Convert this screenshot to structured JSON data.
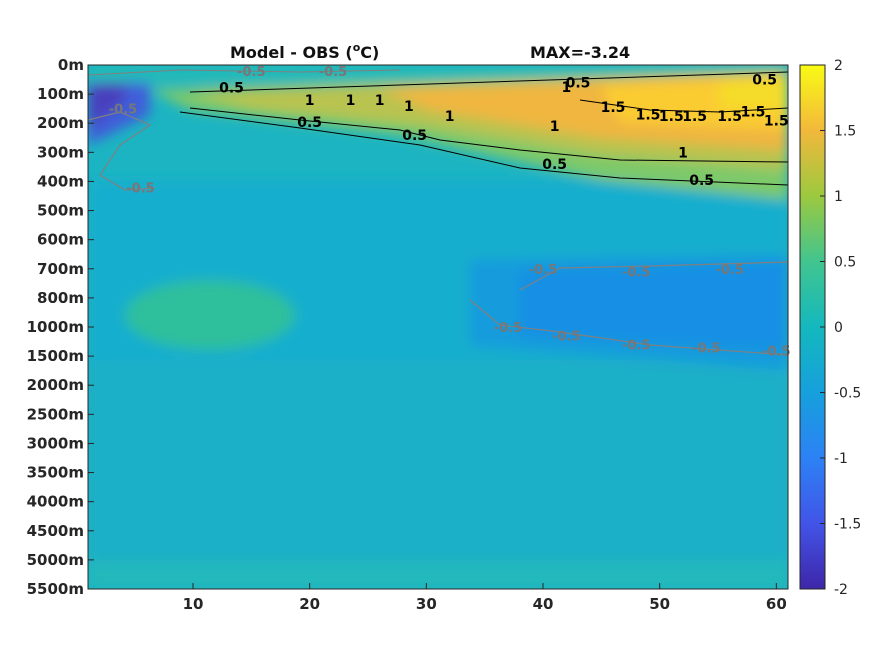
{
  "chart_data": {
    "type": "heatmap",
    "title_left": "Model - OBS (",
    "title_unit_sup": "o",
    "title_unit_tail": "C)",
    "title_max": "MAX=-3.24",
    "x_ticks": [
      10,
      20,
      30,
      40,
      50,
      60
    ],
    "x_range": [
      1,
      61
    ],
    "y_tick_labels": [
      "0m",
      "100m",
      "200m",
      "300m",
      "400m",
      "500m",
      "600m",
      "700m",
      "800m",
      "1000m",
      "1500m",
      "2000m",
      "2500m",
      "3000m",
      "3500m",
      "4000m",
      "4500m",
      "5000m",
      "5500m"
    ],
    "colorbar": {
      "range": [
        -2,
        2
      ],
      "ticks": [
        2,
        1.5,
        1,
        0.5,
        0,
        -0.5,
        -1,
        -1.5,
        -2
      ],
      "tick_labels": [
        "2",
        "1.5",
        "1",
        "0.5",
        "0",
        "-0.5",
        "-1",
        "-1.5",
        "-2"
      ]
    },
    "colormap": "parula",
    "contours": [
      {
        "level": "0.5",
        "color": "#000000",
        "labels": [
          {
            "x": 13.3,
            "y": 0.78
          },
          {
            "x": 20,
            "y": 1.95
          },
          {
            "x": 29,
            "y": 2.4
          },
          {
            "x": 43,
            "y": 0.6
          },
          {
            "x": 41,
            "y": 3.4
          },
          {
            "x": 53.6,
            "y": 3.95
          },
          {
            "x": 59,
            "y": 0.5
          }
        ]
      },
      {
        "level": "1",
        "color": "#000000",
        "labels": [
          {
            "x": 20,
            "y": 1.2
          },
          {
            "x": 23.5,
            "y": 1.2
          },
          {
            "x": 26,
            "y": 1.2
          },
          {
            "x": 28.5,
            "y": 1.4
          },
          {
            "x": 32,
            "y": 1.75
          },
          {
            "x": 42,
            "y": 0.75
          },
          {
            "x": 41,
            "y": 2.1
          },
          {
            "x": 52,
            "y": 3.0
          }
        ]
      },
      {
        "level": "1.5",
        "color": "#000000",
        "labels": [
          {
            "x": 46,
            "y": 1.45
          },
          {
            "x": 49,
            "y": 1.7
          },
          {
            "x": 51,
            "y": 1.75
          },
          {
            "x": 53,
            "y": 1.75
          },
          {
            "x": 56,
            "y": 1.75
          },
          {
            "x": 58,
            "y": 1.6
          },
          {
            "x": 60,
            "y": 1.9
          }
        ]
      },
      {
        "level": "-0.5",
        "color": "#808080",
        "labels": [
          {
            "x": 15,
            "y": 0.2
          },
          {
            "x": 22,
            "y": 0.2
          },
          {
            "x": 4,
            "y": 1.5
          },
          {
            "x": 5.5,
            "y": 4.2
          },
          {
            "x": 40,
            "y": 7.0
          },
          {
            "x": 48,
            "y": 7.1
          },
          {
            "x": 56,
            "y": 7.0
          },
          {
            "x": 37,
            "y": 9.0
          },
          {
            "x": 42,
            "y": 9.3
          },
          {
            "x": 48,
            "y": 9.6
          },
          {
            "x": 54,
            "y": 9.7
          },
          {
            "x": 60,
            "y": 9.8
          }
        ]
      }
    ]
  }
}
